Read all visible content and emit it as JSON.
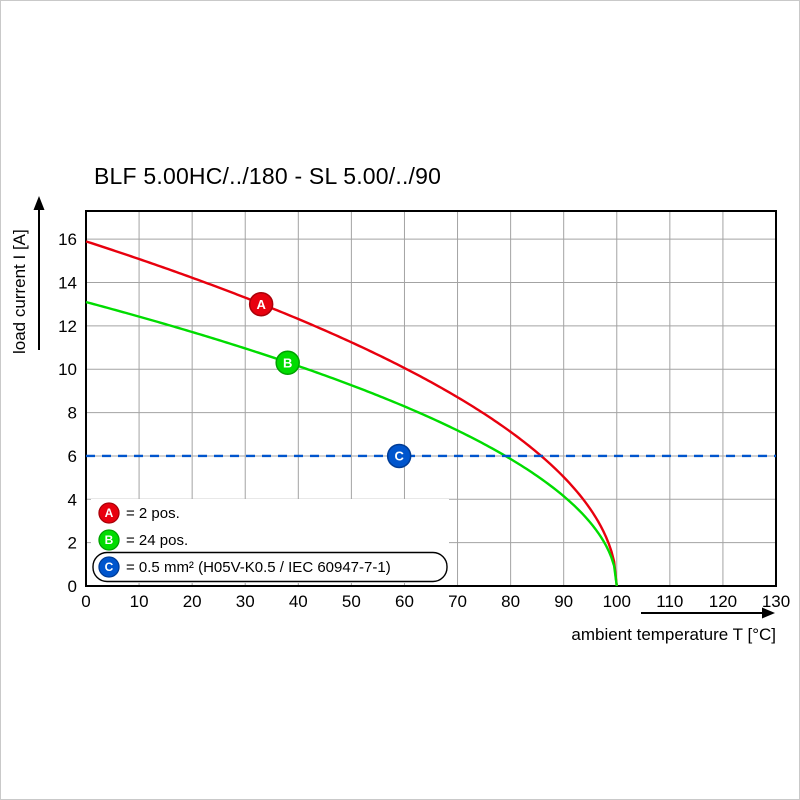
{
  "page": {
    "background": "#ffffff",
    "border_color": "#c9c9c9"
  },
  "chart_data": {
    "type": "line",
    "title": "BLF 5.00HC/../180 - SL 5.00/../90",
    "xlabel": "ambient temperature T [°C]",
    "ylabel": "load current I [A]",
    "xlim": [
      0,
      130
    ],
    "ylim": [
      0,
      17.3
    ],
    "x_ticks": [
      0,
      10,
      20,
      30,
      40,
      50,
      60,
      70,
      80,
      90,
      100,
      110,
      120,
      130
    ],
    "y_ticks": [
      0,
      2,
      4,
      6,
      8,
      10,
      12,
      14,
      16
    ],
    "grid": true,
    "grid_color": "#a3a3a3",
    "legend_position": "bottom-left-inside",
    "series": [
      {
        "name": "A",
        "legend": "= 2 pos.",
        "color": "#e8000e",
        "marker_stroke": "#aa0008",
        "curve": {
          "formula": "I = I0 * sqrt(1 - T/100)",
          "i0": 15.9,
          "t_end": 100
        },
        "points": [
          [
            0,
            15.9
          ],
          [
            10,
            15.1
          ],
          [
            20,
            14.2
          ],
          [
            30,
            13.3
          ],
          [
            40,
            12.3
          ],
          [
            50,
            11.2
          ],
          [
            60,
            10.1
          ],
          [
            70,
            8.7
          ],
          [
            80,
            7.1
          ],
          [
            90,
            5.0
          ],
          [
            95,
            3.6
          ],
          [
            100,
            0
          ]
        ],
        "marker_pos": {
          "x": 33,
          "y": 13.0
        }
      },
      {
        "name": "B",
        "legend": "= 24 pos.",
        "color": "#00dc00",
        "marker_stroke": "#00a000",
        "curve": {
          "formula": "I = I0 * sqrt(1 - T/100)",
          "i0": 13.1,
          "t_end": 100
        },
        "points": [
          [
            0,
            13.1
          ],
          [
            10,
            12.4
          ],
          [
            20,
            11.7
          ],
          [
            30,
            11.0
          ],
          [
            40,
            10.1
          ],
          [
            50,
            9.3
          ],
          [
            60,
            8.3
          ],
          [
            70,
            7.2
          ],
          [
            80,
            5.9
          ],
          [
            90,
            4.1
          ],
          [
            95,
            2.9
          ],
          [
            100,
            0
          ]
        ],
        "marker_pos": {
          "x": 38,
          "y": 10.3
        }
      },
      {
        "name": "C",
        "legend": "= 0.5 mm² (H05V-K0.5 / IEC 60947-7-1)",
        "color": "#0055cd",
        "marker_stroke": "#003c96",
        "hline": {
          "y": 6,
          "x_start": 0,
          "x_end": 130,
          "dashed": true
        },
        "points": [
          [
            0,
            6
          ],
          [
            130,
            6
          ]
        ],
        "marker_pos": {
          "x": 59,
          "y": 6
        },
        "boxed_legend": true
      }
    ]
  }
}
